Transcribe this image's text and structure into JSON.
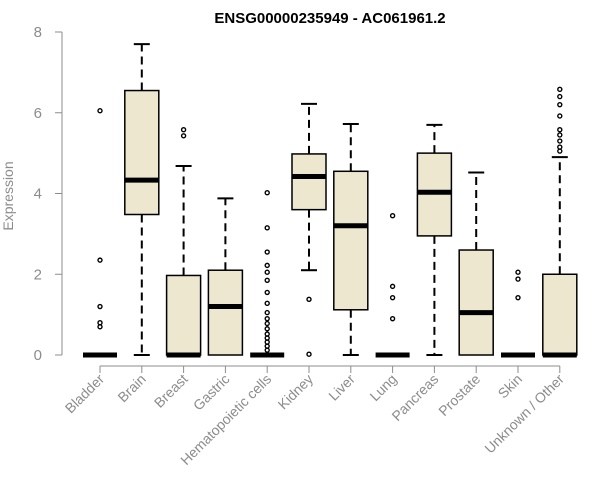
{
  "chart_data": {
    "type": "box",
    "title": "ENSG00000235949 - AC061961.2",
    "xlabel": "",
    "ylabel": "Expression",
    "ylim": [
      0,
      8
    ],
    "yticks": [
      0,
      2,
      4,
      6,
      8
    ],
    "box_fill": "#ede7cf",
    "box_stroke": "#000000",
    "axis_color": "#8c8c8c",
    "categories": [
      "Bladder",
      "Brain",
      "Breast",
      "Gastric",
      "Hematopoietic cells",
      "Kidney",
      "Liver",
      "Lung",
      "Pancreas",
      "Prostate",
      "Skin",
      "Unknown / Other"
    ],
    "boxes": [
      {
        "min": 0,
        "q1": 0,
        "median": 0,
        "q3": 0,
        "max": 0,
        "outliers": [
          6.05,
          2.35,
          1.2,
          0.8,
          0.7
        ]
      },
      {
        "min": 0,
        "q1": 3.48,
        "median": 4.33,
        "q3": 6.55,
        "max": 7.7,
        "outliers": []
      },
      {
        "min": 0,
        "q1": 0,
        "median": 0,
        "q3": 1.97,
        "max": 4.68,
        "outliers": [
          5.58,
          5.43
        ]
      },
      {
        "min": 0,
        "q1": 0,
        "median": 1.2,
        "q3": 2.1,
        "max": 3.88,
        "outliers": []
      },
      {
        "min": 0,
        "q1": 0,
        "median": 0,
        "q3": 0,
        "max": 0,
        "outliers": [
          4.02,
          3.15,
          2.55,
          2.22,
          2.05,
          1.85,
          1.55,
          1.28,
          1.05,
          0.9,
          0.78,
          0.65,
          0.52,
          0.42,
          0.32,
          0.22,
          0.12
        ]
      },
      {
        "min": 2.1,
        "q1": 3.6,
        "median": 4.42,
        "q3": 4.98,
        "max": 6.22,
        "outliers": [
          1.38,
          0.02
        ]
      },
      {
        "min": 0,
        "q1": 1.12,
        "median": 3.2,
        "q3": 4.55,
        "max": 5.72,
        "outliers": []
      },
      {
        "min": 0,
        "q1": 0,
        "median": 0,
        "q3": 0,
        "max": 0,
        "outliers": [
          3.45,
          1.7,
          1.42,
          0.9
        ]
      },
      {
        "min": 0,
        "q1": 2.95,
        "median": 4.03,
        "q3": 5.0,
        "max": 5.7,
        "outliers": []
      },
      {
        "min": 0,
        "q1": 0,
        "median": 1.05,
        "q3": 2.6,
        "max": 4.52,
        "outliers": []
      },
      {
        "min": 0,
        "q1": 0,
        "median": 0,
        "q3": 0,
        "max": 0,
        "outliers": [
          2.05,
          1.88,
          1.42
        ]
      },
      {
        "min": 0,
        "q1": 0,
        "median": 0,
        "q3": 2.0,
        "max": 4.9,
        "outliers": [
          6.58,
          6.4,
          6.2,
          5.92,
          5.58,
          5.45,
          5.3,
          5.15,
          5.05
        ]
      }
    ]
  }
}
